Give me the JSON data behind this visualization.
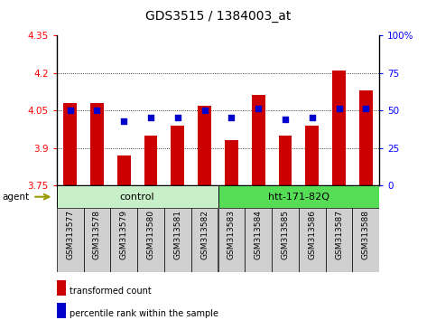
{
  "title": "GDS3515 / 1384003_at",
  "samples": [
    "GSM313577",
    "GSM313578",
    "GSM313579",
    "GSM313580",
    "GSM313581",
    "GSM313582",
    "GSM313583",
    "GSM313584",
    "GSM313585",
    "GSM313586",
    "GSM313587",
    "GSM313588"
  ],
  "bar_values": [
    4.08,
    4.08,
    3.87,
    3.95,
    3.99,
    4.07,
    3.93,
    4.11,
    3.95,
    3.99,
    4.21,
    4.13
  ],
  "dot_values": [
    50,
    50,
    43,
    45,
    45,
    50,
    45,
    51,
    44,
    45,
    51,
    51
  ],
  "bar_color": "#cc0000",
  "dot_color": "#0000cc",
  "ylim_left": [
    3.75,
    4.35
  ],
  "ylim_right": [
    0,
    100
  ],
  "yticks_left": [
    3.75,
    3.9,
    4.05,
    4.2,
    4.35
  ],
  "yticks_right": [
    0,
    25,
    50,
    75,
    100
  ],
  "ytick_labels_left": [
    "3.75",
    "3.9",
    "4.05",
    "4.2",
    "4.35"
  ],
  "ytick_labels_right": [
    "0",
    "25",
    "50",
    "75",
    "100%"
  ],
  "hlines": [
    3.9,
    4.05,
    4.2
  ],
  "groups": [
    {
      "label": "control",
      "start": 0,
      "end": 6,
      "color": "#c8f0c8"
    },
    {
      "label": "htt-171-82Q",
      "start": 6,
      "end": 12,
      "color": "#55dd55"
    }
  ],
  "agent_label": "agent",
  "legend": [
    {
      "label": "transformed count",
      "color": "#cc0000"
    },
    {
      "label": "percentile rank within the sample",
      "color": "#0000cc"
    }
  ],
  "bar_bottom": 3.75,
  "tick_area_bg": "#d0d0d0",
  "plot_bg": "#ffffff"
}
